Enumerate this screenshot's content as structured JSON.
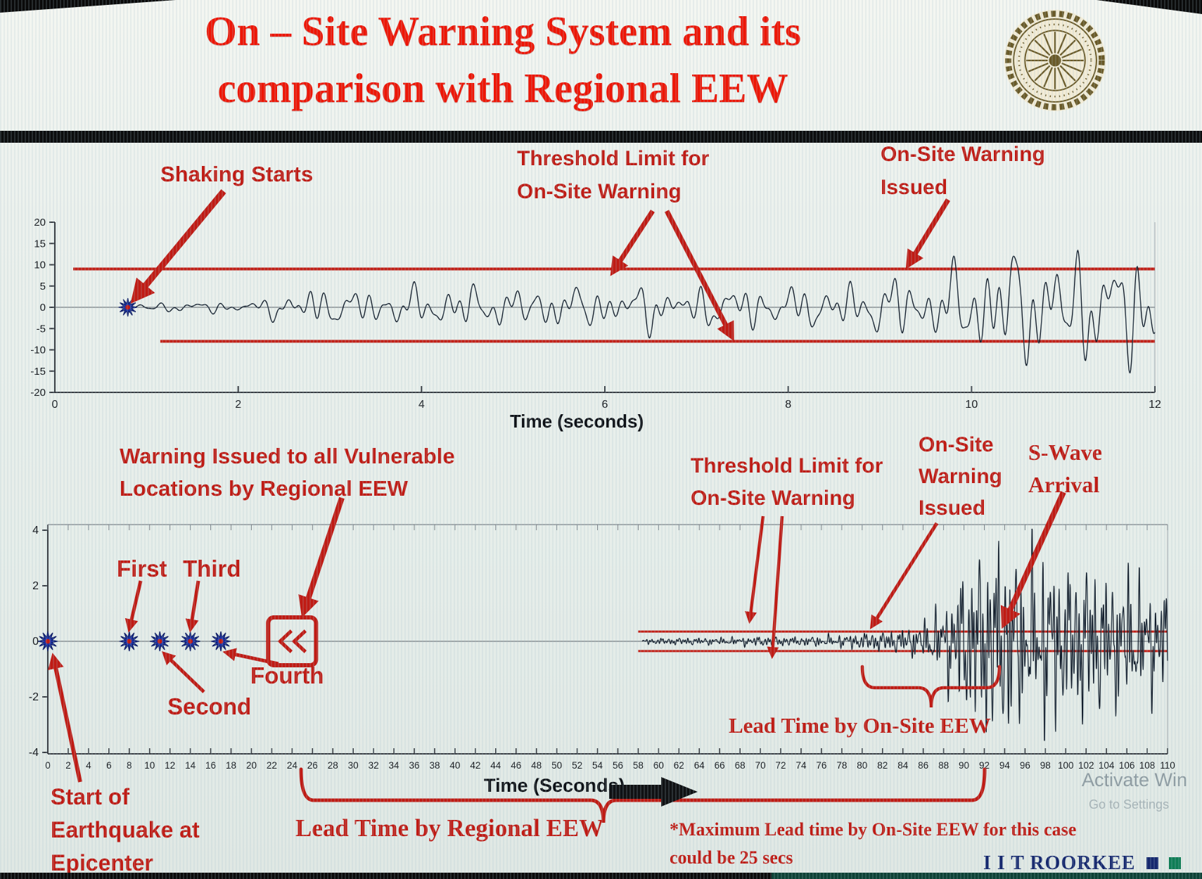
{
  "slide": {
    "title_line1": "On – Site Warning System and its",
    "title_line2": "comparison with Regional EEW",
    "title_color": "#ee1606",
    "accent_red": "#c01b14",
    "logo": "iit-roorkee-circular-seal",
    "footer_brand": "I I T ROORKEE",
    "watermark_line1": "Activate Win",
    "watermark_line2": "Go to Settings"
  },
  "chart_data": [
    {
      "type": "line",
      "xlabel": "Time (seconds)",
      "xlim": [
        0,
        12
      ],
      "ylim": [
        -20,
        20
      ],
      "xticks": [
        0,
        2,
        4,
        6,
        8,
        10,
        12
      ],
      "yticks": [
        20,
        15,
        10,
        5,
        0,
        -5,
        -10,
        -15,
        -20
      ],
      "grid": false,
      "line_color": "#141f2d",
      "threshold": {
        "upper": 9,
        "lower": -8,
        "color": "#c22017",
        "upper_start_x": 0.2,
        "lower_start_x": 1.15
      },
      "events": {
        "shaking_starts_t": 0.78,
        "onsite_warning_issued_t": 9.3
      },
      "series": [
        {
          "name": "ground motion",
          "envelope": [
            [
              0,
              0
            ],
            [
              0.72,
              0
            ],
            [
              0.78,
              1.8
            ],
            [
              0.9,
              1.1
            ],
            [
              1.2,
              1.3
            ],
            [
              1.6,
              1.7
            ],
            [
              2.0,
              1.5
            ],
            [
              2.3,
              2.2
            ],
            [
              2.5,
              5.2
            ],
            [
              2.8,
              5.8
            ],
            [
              3.1,
              4.6
            ],
            [
              3.5,
              5.2
            ],
            [
              4.0,
              5.6
            ],
            [
              4.5,
              6.2
            ],
            [
              5.0,
              5.2
            ],
            [
              5.5,
              6.0
            ],
            [
              6.0,
              5.4
            ],
            [
              6.5,
              6.6
            ],
            [
              7.0,
              5.6
            ],
            [
              7.5,
              6.2
            ],
            [
              8.0,
              5.6
            ],
            [
              8.5,
              6.4
            ],
            [
              9.0,
              7.6
            ],
            [
              9.3,
              9.6
            ],
            [
              9.6,
              8.4
            ],
            [
              9.9,
              12.5
            ],
            [
              10.2,
              15.5
            ],
            [
              10.5,
              17.5
            ],
            [
              10.8,
              13.5
            ],
            [
              11.1,
              17.0
            ],
            [
              11.5,
              14.5
            ],
            [
              11.8,
              16.5
            ],
            [
              12.0,
              15.0
            ]
          ]
        }
      ],
      "annotations": {
        "shaking_starts": "Shaking Starts",
        "threshold_limit_line1": "Threshold Limit for",
        "threshold_limit_line2": "On-Site Warning",
        "warning_issued_line1": "On-Site Warning",
        "warning_issued_line2": "Issued"
      }
    },
    {
      "type": "line",
      "xlabel": "Time (Seconds)",
      "xlim": [
        0,
        110
      ],
      "ylim": [
        -4,
        4
      ],
      "xticks": [
        0,
        2,
        4,
        6,
        8,
        10,
        12,
        14,
        16,
        18,
        20,
        22,
        24,
        26,
        28,
        30,
        32,
        34,
        36,
        38,
        40,
        42,
        44,
        46,
        48,
        50,
        52,
        54,
        56,
        58,
        60,
        62,
        64,
        66,
        68,
        70,
        72,
        74,
        76,
        78,
        80,
        82,
        84,
        86,
        88,
        90,
        92,
        94,
        96,
        98,
        100,
        102,
        104,
        106,
        108,
        110
      ],
      "yticks": [
        4,
        2,
        0,
        -2,
        -4
      ],
      "grid": false,
      "line_color": "#141f2d",
      "threshold": {
        "upper": 0.35,
        "lower": -0.35,
        "color": "#c22017",
        "start_x": 58
      },
      "p_wave_detections": [
        {
          "label": "Start of Earthquake at Epicenter",
          "t": 0
        },
        {
          "label": "First",
          "t": 8
        },
        {
          "label": "Second",
          "t": 11
        },
        {
          "label": "Third",
          "t": 14
        },
        {
          "label": "Fourth",
          "t": 17
        }
      ],
      "regional_warning_symbol_t": 24,
      "events": {
        "onsite_warning_issued_t": 80,
        "s_wave_arrival_t": 93
      },
      "lead_time_regional": {
        "from_t": 25,
        "to_t": 92
      },
      "lead_time_onsite": {
        "from_t": 80,
        "to_t": 93.5
      },
      "series": [
        {
          "name": "ground motion",
          "envelope": [
            [
              0,
              0
            ],
            [
              58.3,
              0
            ],
            [
              58.6,
              0.12
            ],
            [
              62,
              0.16
            ],
            [
              66,
              0.16
            ],
            [
              70,
              0.22
            ],
            [
              74,
              0.2
            ],
            [
              78,
              0.28
            ],
            [
              80,
              0.38
            ],
            [
              82,
              0.45
            ],
            [
              84,
              0.55
            ],
            [
              86,
              0.85
            ],
            [
              88,
              1.7
            ],
            [
              90,
              3.3
            ],
            [
              92,
              4.3
            ],
            [
              94,
              4.5
            ],
            [
              96,
              3.5
            ],
            [
              98,
              4.1
            ],
            [
              100,
              3.3
            ],
            [
              102,
              3.7
            ],
            [
              104,
              2.9
            ],
            [
              106,
              3.1
            ],
            [
              108,
              2.5
            ],
            [
              110,
              2.3
            ]
          ]
        }
      ],
      "annotations": {
        "regional_warning_line1": "Warning Issued to all Vulnerable",
        "regional_warning_line2": "Locations by Regional EEW",
        "first": "First",
        "second": "Second",
        "third": "Third",
        "fourth": "Fourth",
        "threshold_limit_line1": "Threshold Limit for",
        "threshold_limit_line2": "On-Site Warning",
        "onsite_line1": "On-Site",
        "onsite_line2": "Warning",
        "onsite_line3": "Issued",
        "swave_line1": "S-Wave",
        "swave_line2": "Arrival",
        "lead_time_onsite": "Lead Time by On-Site EEW",
        "lead_time_regional": "Lead Time by Regional EEW",
        "epicenter_line1": "Start of",
        "epicenter_line2": "Earthquake at",
        "epicenter_line3": "Epicenter",
        "footnote_line1": "*Maximum Lead time by On-Site EEW for this case",
        "footnote_line2": "could be 25 secs"
      }
    }
  ]
}
